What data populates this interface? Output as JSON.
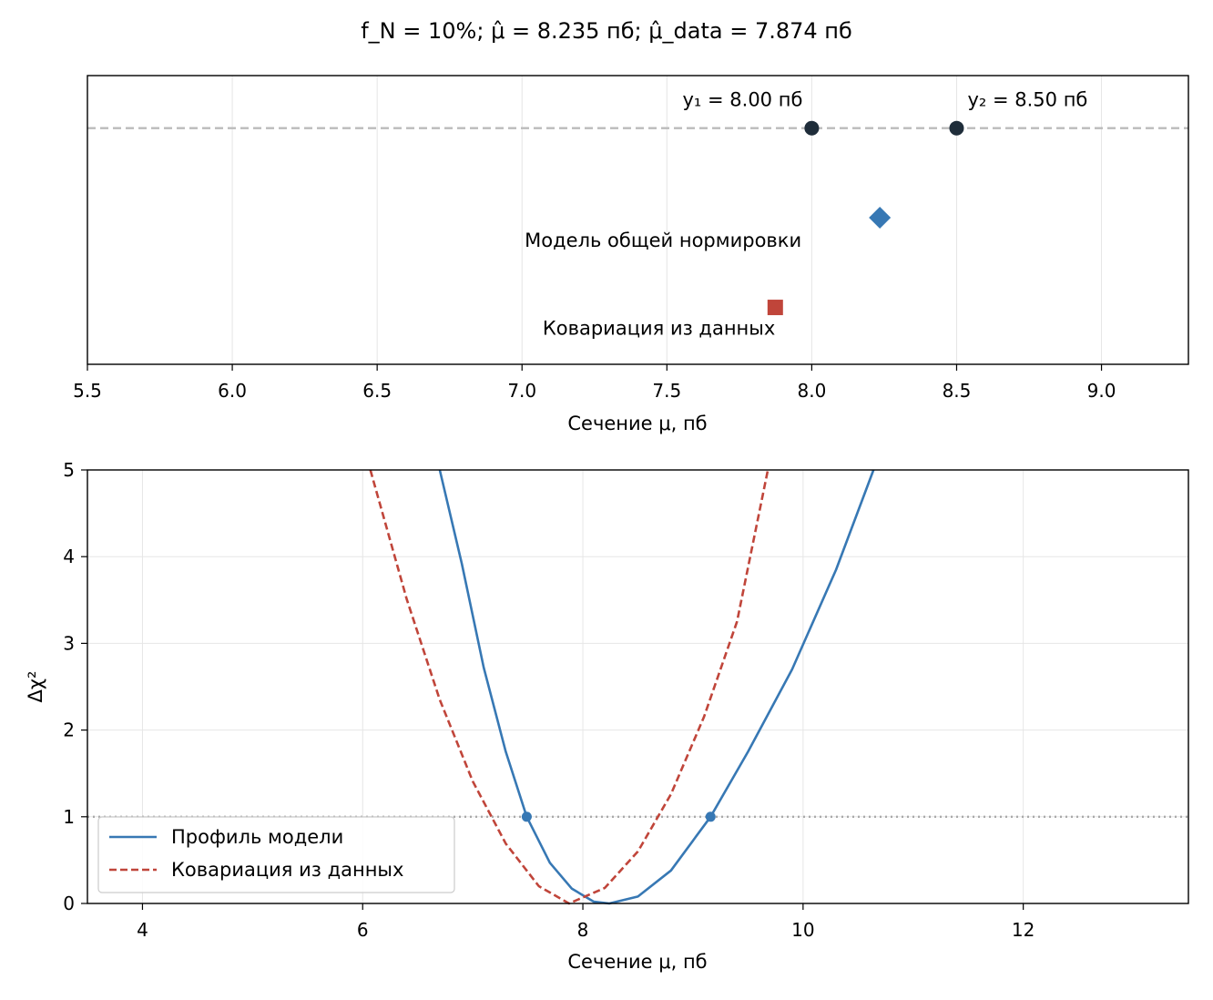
{
  "figure": {
    "title": "f_N = 10%; μ̂ = 8.235 пб; μ̂_data = 7.874 пб"
  },
  "chart_data": [
    {
      "type": "scatter",
      "xlabel": "Сечение μ, пб",
      "ylabel": "",
      "xlim": [
        5.5,
        9.3
      ],
      "ylim": [
        0,
        1
      ],
      "xticks": [
        "5.5",
        "6.0",
        "6.5",
        "7.0",
        "7.5",
        "8.0",
        "8.5",
        "9.0"
      ],
      "grid": true,
      "reference_line": {
        "y": 0.818,
        "style": "dashed",
        "color": "#bbbbbb"
      },
      "series": [
        {
          "label": "y₁ = 8.00 пб",
          "x": 8.0,
          "y": 0.818,
          "marker": "circle",
          "color": "#1f2d3a"
        },
        {
          "label": "y₂ = 8.50 пб",
          "x": 8.5,
          "y": 0.818,
          "marker": "circle",
          "color": "#1f2d3a"
        },
        {
          "label": "Модель общей нормировки",
          "x": 8.235,
          "y": 0.508,
          "marker": "diamond",
          "color": "#3778b4"
        },
        {
          "label": "Ковариация из данных",
          "x": 7.874,
          "y": 0.197,
          "marker": "square",
          "color": "#c0453a"
        }
      ]
    },
    {
      "type": "line",
      "xlabel": "Сечение μ, пб",
      "ylabel": "Δχ²",
      "xlim": [
        3.5,
        13.5
      ],
      "ylim": [
        0,
        5
      ],
      "xticks": [
        4,
        6,
        8,
        10,
        12
      ],
      "yticks": [
        0,
        1,
        2,
        3,
        4,
        5
      ],
      "grid": true,
      "legend": "lower-left",
      "reference_line": {
        "y": 1,
        "style": "dotted",
        "color": "#aaaaaa"
      },
      "series": [
        {
          "name": "Профиль модели",
          "style": "solid",
          "color": "#3778b4",
          "x": [
            6.7,
            6.9,
            7.1,
            7.3,
            7.49,
            7.7,
            7.9,
            8.1,
            8.24,
            8.5,
            8.8,
            9.16,
            9.5,
            9.9,
            10.3,
            10.64
          ],
          "y": [
            5.0,
            3.92,
            2.72,
            1.75,
            1.0,
            0.47,
            0.17,
            0.02,
            0.0,
            0.08,
            0.38,
            1.0,
            1.75,
            2.7,
            3.85,
            5.0
          ]
        },
        {
          "name": "Ковариация из данных",
          "style": "dashed",
          "color": "#c0453a",
          "x": [
            6.07,
            6.4,
            6.7,
            7.0,
            7.3,
            7.6,
            7.874,
            8.2,
            8.5,
            8.8,
            9.1,
            9.4,
            9.68
          ],
          "y": [
            5.0,
            3.51,
            2.35,
            1.41,
            0.69,
            0.2,
            0.0,
            0.18,
            0.6,
            1.26,
            2.15,
            3.25,
            5.0
          ]
        }
      ],
      "intersections": [
        {
          "x": 7.49,
          "y": 1.0
        },
        {
          "x": 9.16,
          "y": 1.0
        }
      ]
    }
  ]
}
